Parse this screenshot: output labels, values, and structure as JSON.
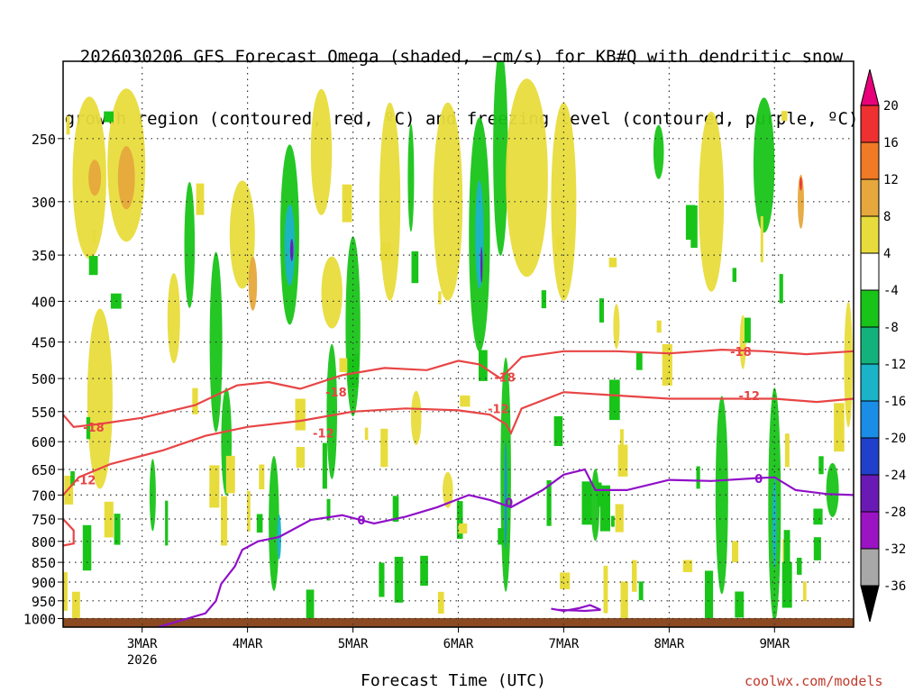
{
  "chart_data": {
    "type": "heatmap",
    "title_line1": "2026030206 GFS Forecast Omega (shaded, −cm/s) for KB#Q with dendritic snow",
    "title_line2": "growth region (contoured, red, ºC) and freezing level (contoured, purple, ºC)",
    "xlabel": "Forecast Time (UTC)",
    "x_ticks": [
      "3MAR",
      "4MAR",
      "5MAR",
      "6MAR",
      "7MAR",
      "8MAR",
      "9MAR"
    ],
    "x_year_label": "2026",
    "y_ticks": [
      250,
      300,
      350,
      400,
      450,
      500,
      550,
      600,
      650,
      700,
      750,
      800,
      850,
      900,
      950,
      1000
    ],
    "ylim": [
      200,
      1025
    ],
    "xlim_days": [
      2.25,
      9.75
    ],
    "colorbar_labels": [
      20,
      16,
      12,
      8,
      4,
      -4,
      -8,
      -12,
      -16,
      -20,
      -24,
      -28,
      -32,
      -36
    ],
    "colorbar_colors": [
      "#e8007a",
      "#ee3030",
      "#f07a25",
      "#e6a83c",
      "#e8dc3c",
      "#ffffff",
      "#19c419",
      "#13b27c",
      "#1ab3c8",
      "#1a8ee6",
      "#2040cc",
      "#6a1ab4",
      "#9b14c4",
      "#a8a8a8",
      "#000000"
    ],
    "contours_red": [
      {
        "label": "-18",
        "points": [
          [
            2.25,
            555
          ],
          [
            2.35,
            575
          ],
          [
            2.6,
            570
          ],
          [
            3.0,
            560
          ],
          [
            3.5,
            540
          ],
          [
            3.9,
            510
          ],
          [
            4.2,
            505
          ],
          [
            4.5,
            515
          ],
          [
            4.9,
            495
          ],
          [
            5.3,
            485
          ],
          [
            5.7,
            488
          ],
          [
            6.0,
            475
          ],
          [
            6.2,
            480
          ],
          [
            6.4,
            500
          ],
          [
            6.6,
            470
          ],
          [
            7.0,
            462
          ],
          [
            7.5,
            462
          ],
          [
            8.0,
            465
          ],
          [
            8.5,
            460
          ],
          [
            8.9,
            462
          ],
          [
            9.3,
            466
          ],
          [
            9.75,
            462
          ]
        ],
        "label_at": [
          [
            2.54,
            575
          ],
          [
            4.84,
            520
          ],
          [
            6.44,
            498
          ],
          [
            8.68,
            462
          ]
        ]
      },
      {
        "label": "-12",
        "points": [
          [
            2.25,
            700
          ],
          [
            2.4,
            665
          ],
          [
            2.7,
            640
          ],
          [
            3.2,
            615
          ],
          [
            3.6,
            590
          ],
          [
            4.0,
            575
          ],
          [
            4.5,
            565
          ],
          [
            5.0,
            550
          ],
          [
            5.5,
            545
          ],
          [
            6.0,
            548
          ],
          [
            6.3,
            555
          ],
          [
            6.45,
            570
          ],
          [
            6.5,
            585
          ],
          [
            6.6,
            545
          ],
          [
            7.0,
            520
          ],
          [
            7.5,
            525
          ],
          [
            8.0,
            530
          ],
          [
            8.5,
            530
          ],
          [
            9.0,
            530
          ],
          [
            9.4,
            535
          ],
          [
            9.75,
            530
          ]
        ],
        "label_at": [
          [
            2.46,
            670
          ],
          [
            4.72,
            585
          ],
          [
            6.38,
            545
          ],
          [
            8.76,
            525
          ]
        ]
      },
      {
        "label": "",
        "points": [
          [
            2.25,
            750
          ],
          [
            2.35,
            775
          ],
          [
            2.35,
            805
          ],
          [
            2.25,
            810
          ]
        ],
        "label_at": []
      }
    ],
    "contours_purple": [
      {
        "label": "0",
        "points": [
          [
            3.15,
            1025
          ],
          [
            3.6,
            985
          ],
          [
            3.7,
            950
          ],
          [
            3.75,
            905
          ],
          [
            3.88,
            860
          ],
          [
            3.95,
            820
          ],
          [
            4.1,
            800
          ],
          [
            4.3,
            790
          ],
          [
            4.6,
            752
          ],
          [
            4.9,
            742
          ],
          [
            5.2,
            760
          ],
          [
            5.5,
            745
          ],
          [
            5.8,
            725
          ],
          [
            6.1,
            700
          ],
          [
            6.3,
            710
          ],
          [
            6.5,
            725
          ],
          [
            6.8,
            690
          ],
          [
            7.0,
            660
          ],
          [
            7.2,
            650
          ],
          [
            7.3,
            690
          ],
          [
            7.6,
            690
          ],
          [
            8.0,
            670
          ],
          [
            8.4,
            672
          ],
          [
            8.8,
            667
          ],
          [
            9.0,
            665
          ],
          [
            9.2,
            690
          ],
          [
            9.5,
            698
          ],
          [
            9.75,
            700
          ]
        ],
        "label_at": [
          [
            5.08,
            752
          ],
          [
            6.48,
            715
          ],
          [
            8.85,
            667
          ]
        ]
      },
      {
        "label": "",
        "points": [
          [
            6.88,
            972
          ],
          [
            7.0,
            978
          ],
          [
            7.15,
            970
          ],
          [
            7.25,
            962
          ],
          [
            7.35,
            975
          ],
          [
            7.2,
            978
          ],
          [
            6.95,
            975
          ]
        ],
        "label_at": []
      }
    ]
  },
  "credit": "coolwx.com/models"
}
